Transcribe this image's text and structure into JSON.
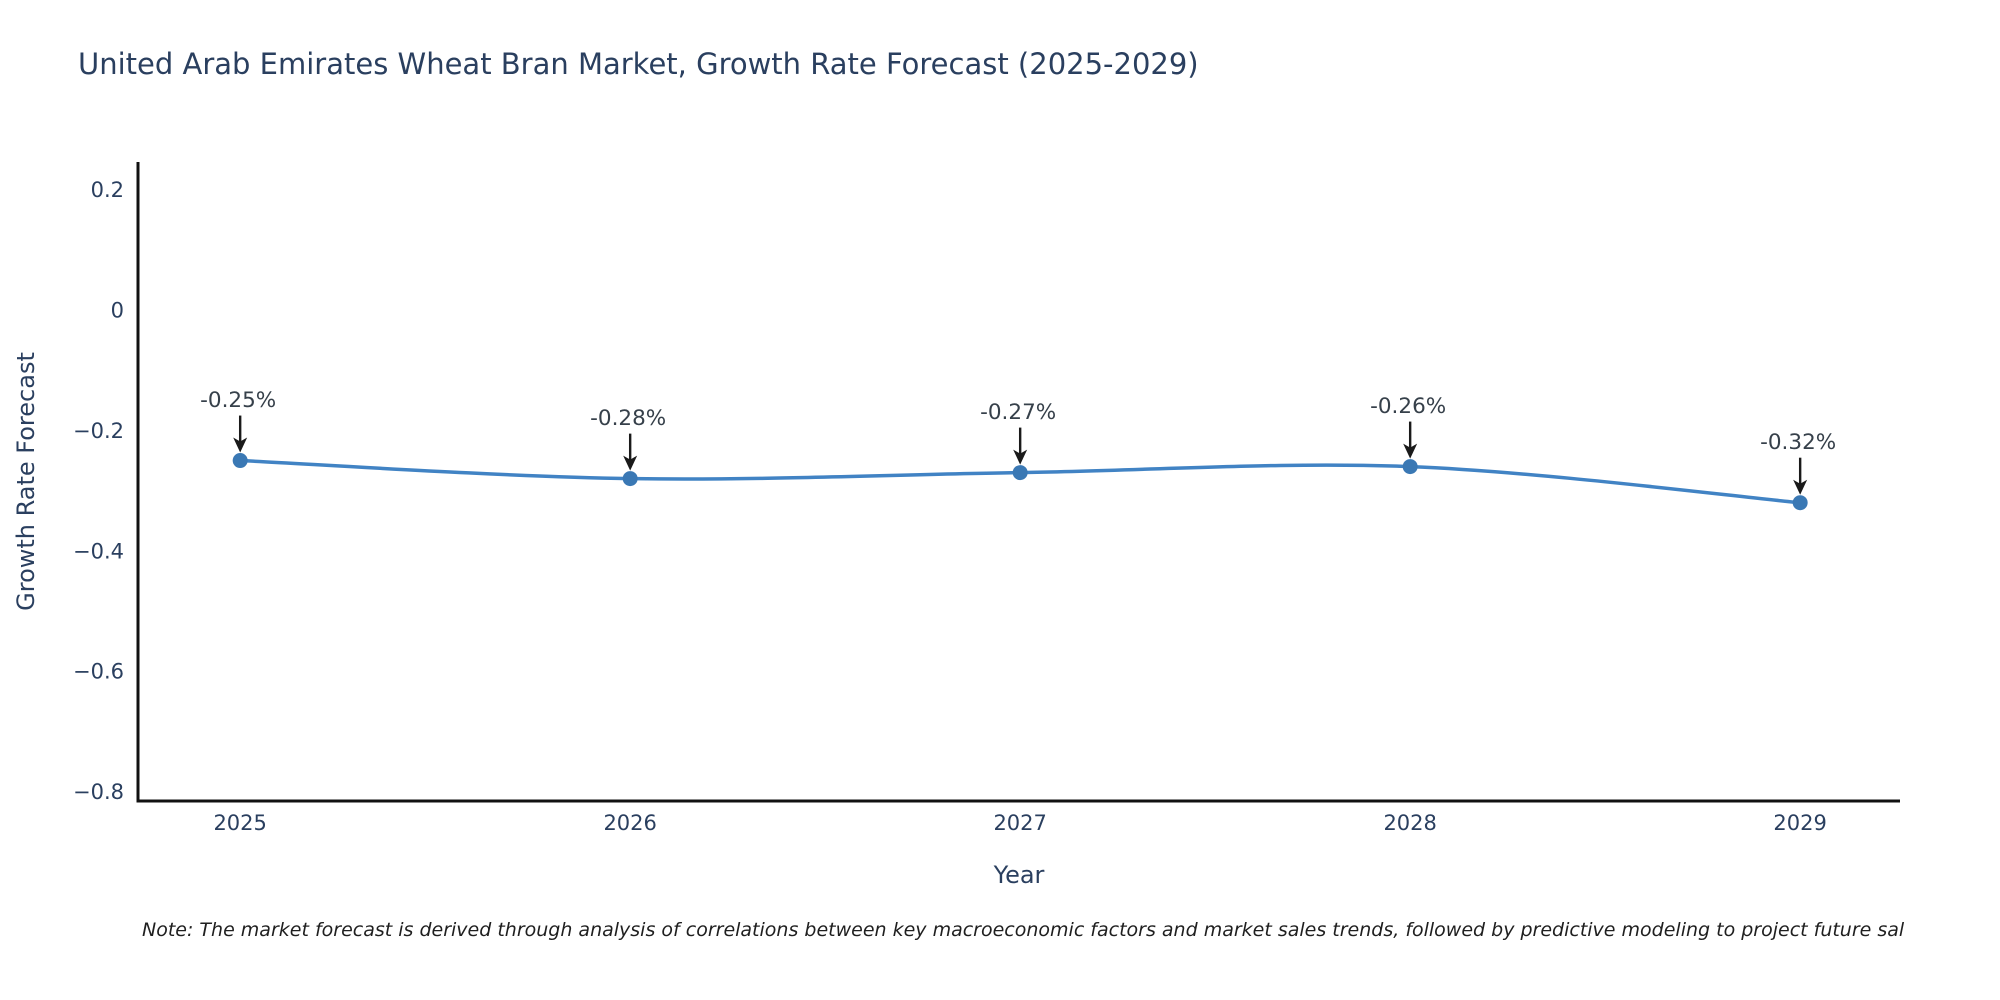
{
  "title": "United Arab Emirates Wheat Bran Market, Growth Rate Forecast (2025-2029)",
  "note": "Note: The market forecast is derived through analysis of correlations between key macroeconomic factors and market sales trends, followed by predictive modeling to project future sal",
  "chart_data": {
    "type": "line",
    "title": "United Arab Emirates Wheat Bran Market, Growth Rate Forecast (2025-2029)",
    "xlabel": "Year",
    "ylabel": "Growth Rate Forecast",
    "x": [
      2025,
      2026,
      2027,
      2028,
      2029
    ],
    "y": [
      -0.25,
      -0.28,
      -0.27,
      -0.26,
      -0.32
    ],
    "point_labels": [
      "-0.25%",
      "-0.28%",
      "-0.27%",
      "-0.26%",
      "-0.32%"
    ],
    "xtick_labels": [
      "2025",
      "2026",
      "2027",
      "2028",
      "2029"
    ],
    "yticks": [
      0.2,
      0,
      -0.2,
      -0.4,
      -0.6,
      -0.8
    ],
    "ytick_labels": [
      "0.2",
      "0",
      "−0.2",
      "−0.4",
      "−0.6",
      "−0.8"
    ],
    "xlim": [
      2024.738,
      2029.256
    ],
    "ylim": [
      -0.8156,
      0.246
    ],
    "grid": false,
    "legend": "none",
    "line_shape": "spline",
    "colors": {
      "line": "#4183c4",
      "marker": "#3a78b4",
      "axis_line": "#111111",
      "tick_label": "#2a3f5f",
      "axis_title": "#2a3f5f",
      "chart_title": "#2a3f5f",
      "annotation_text": "#36404a",
      "annotation_arrow": "#1a1a1a",
      "background": "#ffffff"
    }
  }
}
